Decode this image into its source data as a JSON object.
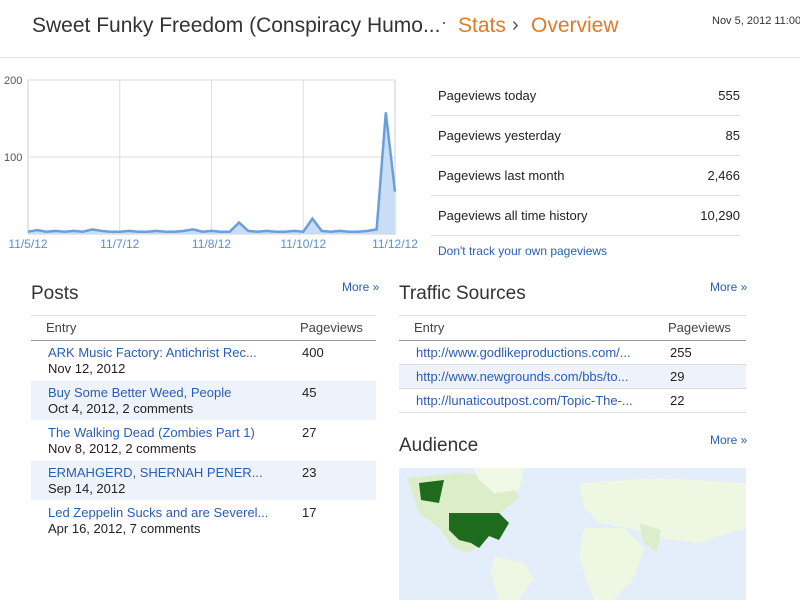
{
  "header": {
    "title": "Sweet Funky Freedom (Conspiracy Humo...",
    "separator": "·",
    "section": "Stats",
    "chevron": "›",
    "page": "Overview",
    "date": "Nov 5, 2012 11:00"
  },
  "chart_data": {
    "type": "area",
    "color": "#6a9fdc",
    "fill": "#c9ddf5",
    "categories": [
      "11/5/12",
      null,
      null,
      null,
      null,
      null,
      null,
      null,
      null,
      null,
      "11/7/12",
      null,
      null,
      null,
      null,
      null,
      null,
      null,
      null,
      null,
      "11/8/12",
      null,
      null,
      null,
      null,
      null,
      null,
      null,
      null,
      null,
      "11/10/12",
      null,
      null,
      null,
      null,
      null,
      null,
      null,
      null,
      null,
      "11/12/12"
    ],
    "values": [
      3,
      5,
      3,
      4,
      3,
      4,
      3,
      6,
      4,
      3,
      3,
      4,
      3,
      3,
      4,
      3,
      3,
      4,
      6,
      3,
      4,
      3,
      3,
      15,
      4,
      3,
      4,
      3,
      3,
      4,
      3,
      20,
      4,
      3,
      4,
      3,
      3,
      4,
      6,
      158,
      55
    ],
    "ylim": [
      0,
      200
    ],
    "yticks": [
      100,
      200
    ],
    "grid": true
  },
  "stats": {
    "rows": [
      [
        "Pageviews today",
        "555"
      ],
      [
        "Pageviews yesterday",
        "85"
      ],
      [
        "Pageviews last month",
        "2,466"
      ],
      [
        "Pageviews all time history",
        "10,290"
      ]
    ],
    "link": "Don't track your own pageviews"
  },
  "posts": {
    "title": "Posts",
    "more": "More »",
    "columns": [
      "Entry",
      "Pageviews"
    ],
    "rows": [
      [
        "ARK Music Factory: Antichrist Rec...",
        "Nov 12, 2012",
        "400"
      ],
      [
        "Buy Some Better Weed, People",
        "Oct 4, 2012, 2 comments",
        "45"
      ],
      [
        "The Walking Dead (Zombies Part 1)",
        "Nov 8, 2012, 2 comments",
        "27"
      ],
      [
        "ERMAHGERD, SHERNAH PENER...",
        "Sep 14, 2012",
        "23"
      ],
      [
        "Led Zeppelin Sucks and are Severel...",
        "Apr 16, 2012, 7 comments",
        "17"
      ]
    ]
  },
  "traffic": {
    "title": "Traffic Sources",
    "more": "More »",
    "columns": [
      "Entry",
      "Pageviews"
    ],
    "rows": [
      [
        "http://www.godlikeproductions.com/...",
        "255"
      ],
      [
        "http://www.newgrounds.com/bbs/to...",
        "29"
      ],
      [
        "http://lunaticoutpost.com/Topic-The-...",
        "22"
      ]
    ]
  },
  "audience": {
    "title": "Audience",
    "more": "More »"
  }
}
